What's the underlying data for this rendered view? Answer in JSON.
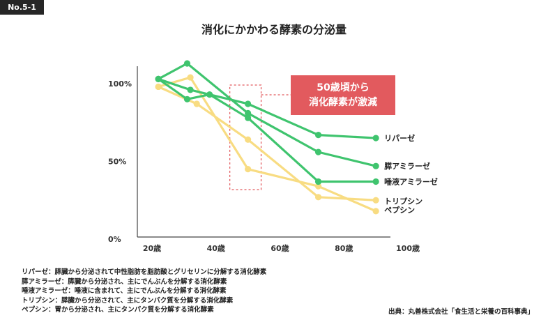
{
  "badge": "No.5-1",
  "callout": {
    "line1": "50歳頃から",
    "line2": "消化酵素が激減"
  },
  "footnotes": [
    "リパーゼ：膵臓から分泌されて中性脂肪を脂肪酸とグリセリンに分解する消化酵素",
    "膵アミラーゼ：膵臓から分泌され、主にでんぷんを分解する消化酵素",
    "唾液アミラーゼ：唾液に含まれて、主にでんぷんを分解する消化酵素",
    "トリプシン：膵臓から分泌されて、主にタンパク質を分解する消化酵素",
    "ペプシン：胃から分泌され、主にタンパク質を分解する消化酵素"
  ],
  "source": "出典：丸善株式会社「食生活と栄養の百科事典」",
  "colors": {
    "green": "#3fc46e",
    "yellow": "#f8dc82",
    "callout": "#e25a5e"
  },
  "chart_data": {
    "type": "line",
    "title": "消化にかかわる酵素の分泌量",
    "xlabel": "",
    "ylabel": "",
    "xlim": [
      20,
      100
    ],
    "ylim": [
      0,
      100
    ],
    "x_ticks": [
      "20歳",
      "40歳",
      "60歳",
      "80歳",
      "100歳"
    ],
    "x_tick_values": [
      20,
      40,
      60,
      80,
      100
    ],
    "y_ticks": [
      "100%",
      "50%",
      "0%"
    ],
    "y_tick_values": [
      100,
      50,
      0
    ],
    "grid": false,
    "highlight_range": [
      50,
      55
    ],
    "series": [
      {
        "name": "リパーゼ",
        "color": "#3fc46e",
        "points": [
          [
            22,
            103
          ],
          [
            32,
            96
          ],
          [
            50,
            87
          ],
          [
            72,
            67
          ],
          [
            90,
            65
          ]
        ]
      },
      {
        "name": "膵アミラーゼ",
        "color": "#3fc46e",
        "points": [
          [
            22,
            103
          ],
          [
            31,
            113
          ],
          [
            50,
            81
          ],
          [
            72,
            56
          ],
          [
            90,
            47
          ]
        ]
      },
      {
        "name": "唾液アミラーゼ",
        "color": "#3fc46e",
        "points": [
          [
            22,
            103
          ],
          [
            31,
            90
          ],
          [
            38,
            93
          ],
          [
            50,
            78
          ],
          [
            72,
            37
          ],
          [
            90,
            37
          ]
        ]
      },
      {
        "name": "トリプシン",
        "color": "#f8dc82",
        "points": [
          [
            22,
            98
          ],
          [
            34,
            87
          ],
          [
            50,
            64
          ],
          [
            72,
            27
          ],
          [
            90,
            25
          ]
        ]
      },
      {
        "name": "ペプシン",
        "color": "#f8dc82",
        "points": [
          [
            22,
            98
          ],
          [
            32,
            104
          ],
          [
            50,
            45
          ],
          [
            72,
            34
          ],
          [
            90,
            18
          ]
        ]
      }
    ]
  }
}
